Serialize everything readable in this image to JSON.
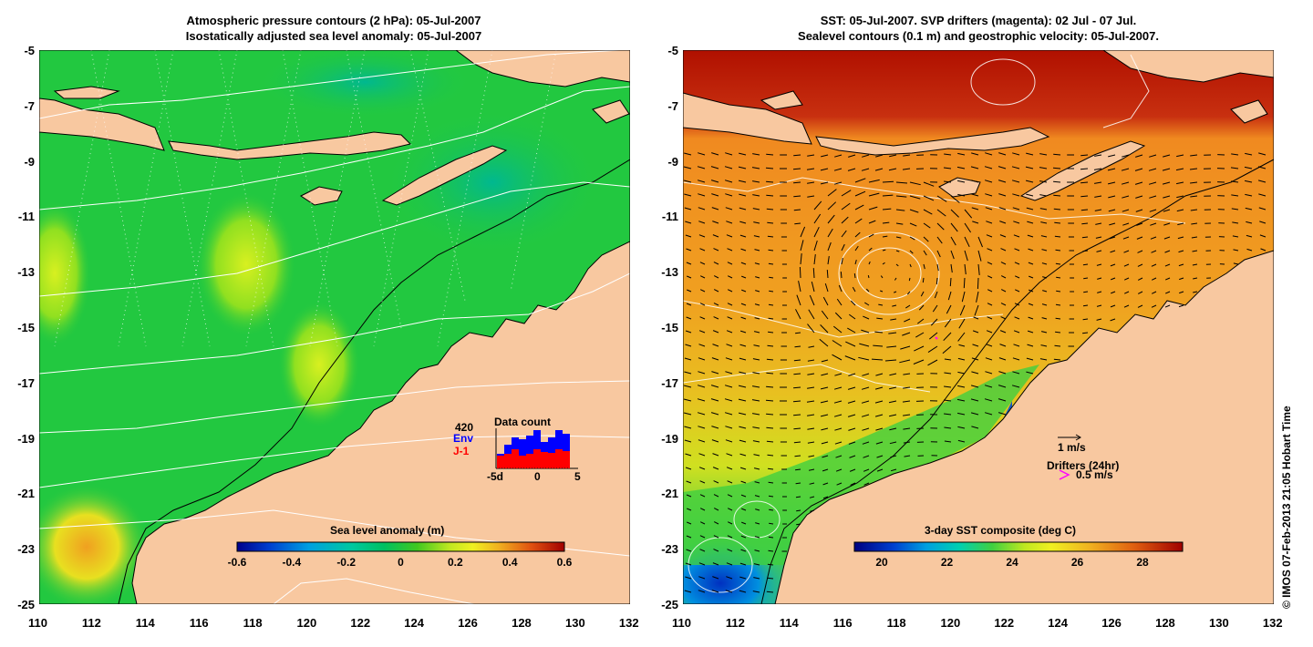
{
  "left_panel": {
    "title_line1": "Atmospheric pressure contours (2 hPa): 05-Jul-2007",
    "title_line2": "Isostatically adjusted sea level anomaly: 05-Jul-2007",
    "colorbar": {
      "title": "Sea level anomaly (m)",
      "ticks": [
        "-0.6",
        "-0.4",
        "-0.2",
        "0",
        "0.2",
        "0.4",
        "0.6"
      ],
      "colors": [
        "#00008b",
        "#0050d0",
        "#00a0e0",
        "#00c8b0",
        "#00c060",
        "#20c020",
        "#a0e020",
        "#f0f020",
        "#f0c020",
        "#f08020",
        "#e04010",
        "#a00000"
      ]
    },
    "data_count": {
      "title": "Data count",
      "max_label": "420",
      "env_label": "Env",
      "j1_label": "J-1",
      "x_ticks": [
        "-5d",
        "0",
        "5"
      ],
      "env_color": "#0000ff",
      "j1_color": "#ff0000"
    }
  },
  "right_panel": {
    "title_line1": "SST: 05-Jul-2007. SVP drifters (magenta): 02 Jul - 07 Jul.",
    "title_line2": "Sealevel contours (0.1 m) and geostrophic velocity: 05-Jul-2007.",
    "colorbar": {
      "title": "3-day SST composite (deg C)",
      "ticks": [
        "20",
        "22",
        "24",
        "26",
        "28"
      ],
      "colors": [
        "#000080",
        "#0030c0",
        "#0080e0",
        "#00c0d0",
        "#20d060",
        "#90e020",
        "#f0f020",
        "#f0c020",
        "#f09020",
        "#e06010",
        "#c02010",
        "#a00000"
      ]
    },
    "velocity_scale_label": "1 m/s",
    "drifters_label": "Drifters (24hr)",
    "drifter_speed_label": "0.5 m/s",
    "drifter_color": "#ff00ff"
  },
  "axes": {
    "y_ticks": [
      "-5",
      "-7",
      "-9",
      "-11",
      "-13",
      "-15",
      "-17",
      "-19",
      "-21",
      "-23",
      "-25"
    ],
    "x_ticks": [
      "110",
      "112",
      "114",
      "116",
      "118",
      "120",
      "122",
      "124",
      "126",
      "128",
      "130",
      "132"
    ]
  },
  "colors": {
    "land": "#f8c8a0",
    "ocean_green": "#22c840",
    "sst_orange": "#f0a020"
  },
  "copyright": "© IMOS 07-Feb-2013 21:05 Hobart Time"
}
